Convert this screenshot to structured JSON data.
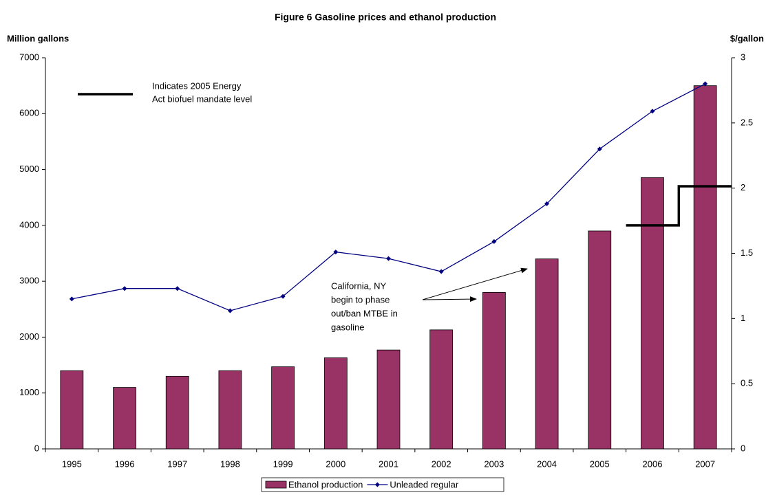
{
  "chart_data": {
    "type": "bar-line",
    "title": "Figure 6 Gasoline prices and ethanol production",
    "y_label": "Million gallons",
    "y2_label": "$/gallon",
    "categories": [
      "1995",
      "1996",
      "1997",
      "1998",
      "1999",
      "2000",
      "2001",
      "2002",
      "2003",
      "2004",
      "2005",
      "2006",
      "2007"
    ],
    "series": [
      {
        "name": "Ethanol production",
        "type": "bar",
        "color": "#993366",
        "values": [
          1400,
          1100,
          1300,
          1400,
          1470,
          1630,
          1770,
          2130,
          2800,
          3400,
          3900,
          4855,
          6500
        ]
      },
      {
        "name": "Unleaded regular",
        "type": "line",
        "axis": "y2",
        "color": "#000080",
        "values": [
          1.15,
          1.23,
          1.23,
          1.06,
          1.17,
          1.51,
          1.46,
          1.36,
          1.59,
          1.88,
          2.3,
          2.59,
          2.8
        ]
      }
    ],
    "mandate": {
      "label_lines": [
        "Indicates 2005 Energy",
        "Act biofuel mandate level"
      ],
      "color": "#000000",
      "values": [
        null,
        null,
        null,
        null,
        null,
        null,
        null,
        null,
        null,
        null,
        null,
        4000,
        4700
      ]
    },
    "annotation_lines": [
      "California, NY",
      "begin to phase",
      "out/ban MTBE in",
      "gasoline"
    ],
    "ylim": [
      0,
      7000
    ],
    "yticks": [
      0,
      1000,
      2000,
      3000,
      4000,
      5000,
      6000,
      7000
    ],
    "y2lim": [
      0,
      3
    ],
    "y2ticks": [
      0,
      0.5,
      1,
      1.5,
      2,
      2.5,
      3
    ],
    "grid": false,
    "legend": "bottom"
  }
}
